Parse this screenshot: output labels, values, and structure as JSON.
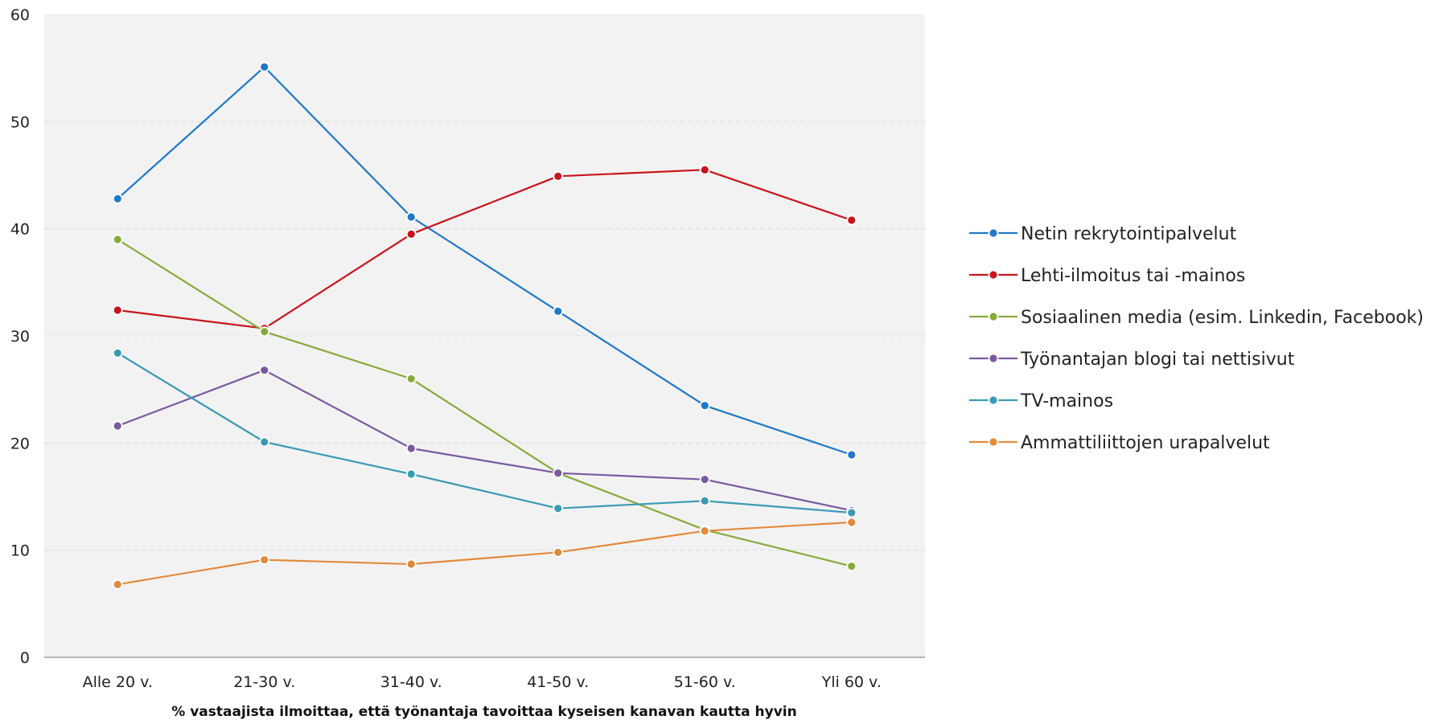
{
  "chart_data": {
    "type": "line",
    "title": "",
    "xlabel": "% vastaajista ilmoittaa, että työnantaja tavoittaa kyseisen kanavan kautta hyvin",
    "ylabel": "",
    "ylim": [
      0,
      60
    ],
    "yticks": [
      "0",
      "10",
      "20",
      "30",
      "40",
      "50",
      "60"
    ],
    "categories": [
      "Alle 20 v.",
      "21-30 v.",
      "31-40 v.",
      "41-50 v.",
      "51-60 v.",
      "Yli 60 v."
    ],
    "grid": true,
    "legend_position": "right",
    "series": [
      {
        "name": "Netin rekrytointipalvelut",
        "color": "#1f78c8",
        "values": [
          42.8,
          55.1,
          41.1,
          32.3,
          23.5,
          18.9
        ]
      },
      {
        "name": "Lehti-ilmoitus tai -mainos",
        "color": "#c8141c",
        "values": [
          32.4,
          30.7,
          39.5,
          44.9,
          45.5,
          40.8
        ]
      },
      {
        "name": "Sosiaalinen media (esim. Linkedin, Facebook)",
        "color": "#86ab3c",
        "values": [
          39.0,
          30.4,
          26.0,
          17.2,
          11.9,
          8.5
        ]
      },
      {
        "name": "Työnantajan blogi tai nettisivut",
        "color": "#7a5a9e",
        "values": [
          21.6,
          26.8,
          19.5,
          17.2,
          16.6,
          13.7
        ]
      },
      {
        "name": "TV-mainos",
        "color": "#3a9ab4",
        "values": [
          28.4,
          20.1,
          17.1,
          13.9,
          14.6,
          13.5
        ]
      },
      {
        "name": "Ammattiliittojen urapalvelut",
        "color": "#e3893c",
        "values": [
          6.8,
          9.1,
          8.7,
          9.8,
          11.8,
          12.6
        ]
      }
    ]
  }
}
